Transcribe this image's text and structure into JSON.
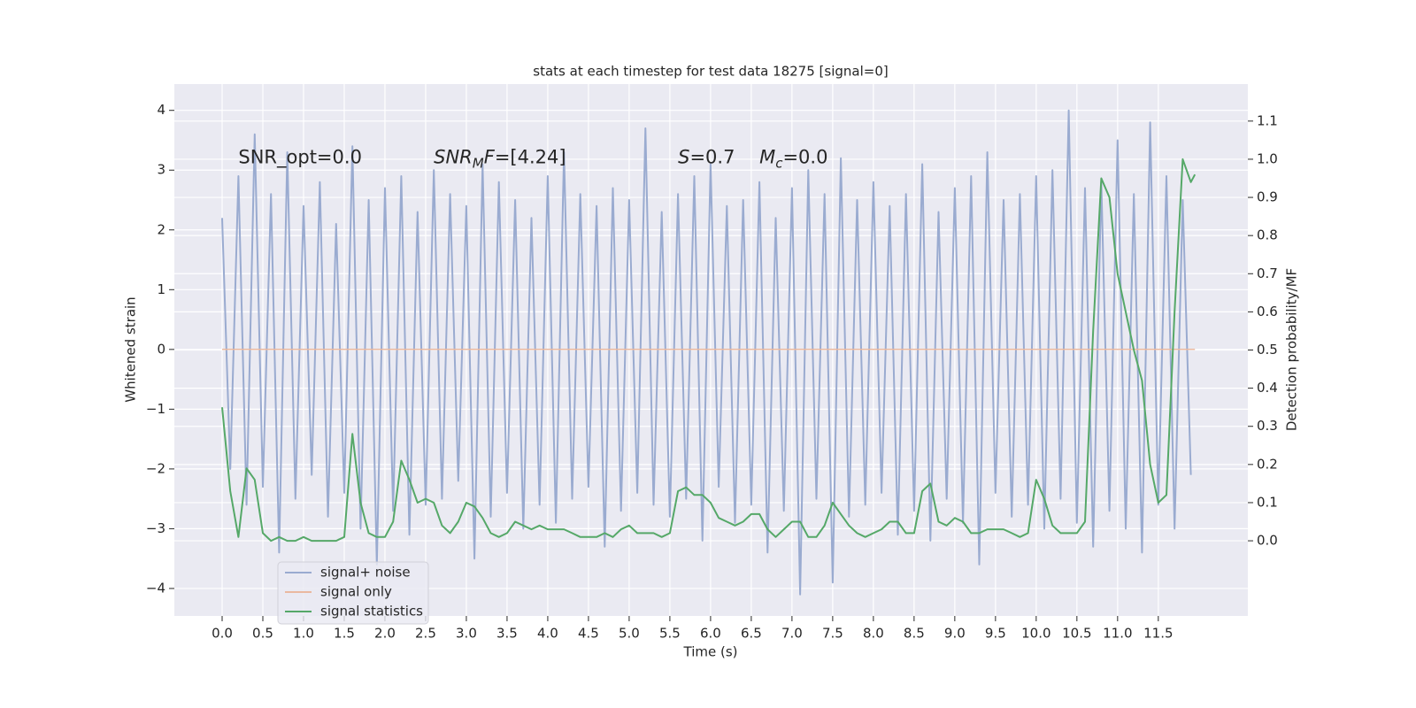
{
  "chart_data": {
    "type": "line",
    "title": "stats at each timestep for test data 18275 [signal=0]",
    "xlabel": "Time (s)",
    "ylabel": "Whitened strain",
    "y2label": "Detection probability/MF",
    "xlim": [
      -0.587,
      12.6
    ],
    "ylim": [
      -4.46,
      4.44
    ],
    "y2lim": [
      -0.197,
      1.197
    ],
    "xticks": [
      {
        "value": 0,
        "label": "0.0"
      },
      {
        "value": 0.5,
        "label": "0.5"
      },
      {
        "value": 1,
        "label": "1.0"
      },
      {
        "value": 1.5,
        "label": "1.5"
      },
      {
        "value": 2,
        "label": "2.0"
      },
      {
        "value": 2.5,
        "label": "2.5"
      },
      {
        "value": 3,
        "label": "3.0"
      },
      {
        "value": 3.5,
        "label": "3.5"
      },
      {
        "value": 4,
        "label": "4.0"
      },
      {
        "value": 4.5,
        "label": "4.5"
      },
      {
        "value": 5,
        "label": "5.0"
      },
      {
        "value": 5.5,
        "label": "5.5"
      },
      {
        "value": 6,
        "label": "6.0"
      },
      {
        "value": 6.5,
        "label": "6.5"
      },
      {
        "value": 7,
        "label": "7.0"
      },
      {
        "value": 7.5,
        "label": "7.5"
      },
      {
        "value": 8,
        "label": "8.0"
      },
      {
        "value": 8.5,
        "label": "8.5"
      },
      {
        "value": 9,
        "label": "9.0"
      },
      {
        "value": 9.5,
        "label": "9.5"
      },
      {
        "value": 10,
        "label": "10.0"
      },
      {
        "value": 10.5,
        "label": "10.5"
      },
      {
        "value": 11,
        "label": "11.0"
      },
      {
        "value": 11.5,
        "label": "11.5"
      }
    ],
    "yticks": [
      {
        "value": -4,
        "label": "−4"
      },
      {
        "value": -3,
        "label": "−3"
      },
      {
        "value": -2,
        "label": "−2"
      },
      {
        "value": -1,
        "label": "−1"
      },
      0,
      1,
      2,
      3,
      4
    ],
    "y2ticks": [
      {
        "value": 0,
        "label": "0.0"
      },
      {
        "value": 0.1,
        "label": "0.1"
      },
      {
        "value": 0.2,
        "label": "0.2"
      },
      {
        "value": 0.3,
        "label": "0.3"
      },
      {
        "value": 0.4,
        "label": "0.4"
      },
      {
        "value": 0.5,
        "label": "0.5"
      },
      {
        "value": 0.6,
        "label": "0.6"
      },
      {
        "value": 0.7,
        "label": "0.7"
      },
      {
        "value": 0.8,
        "label": "0.8"
      },
      {
        "value": 0.9,
        "label": "0.9"
      },
      {
        "value": 1,
        "label": "1.0"
      },
      {
        "value": 1.1,
        "label": "1.1"
      }
    ],
    "grid": true,
    "legend": "lower left",
    "annotations": [
      {
        "x": 0.2,
        "y": 3.2,
        "parts": [
          {
            "text": "SNR_opt=0.0"
          }
        ]
      },
      {
        "x": 2.6,
        "y": 3.2,
        "parts": [
          {
            "text": "SNR",
            "italic": true
          },
          {
            "text": "M",
            "italic": true,
            "sub": true
          },
          {
            "text": "F",
            "italic": true
          },
          {
            "text": "=[4.24]"
          }
        ]
      },
      {
        "x": 5.6,
        "y": 3.2,
        "parts": [
          {
            "text": "S",
            "italic": true
          },
          {
            "text": "=0.7"
          }
        ]
      },
      {
        "x": 6.6,
        "y": 3.2,
        "parts": [
          {
            "text": "M",
            "italic": true
          },
          {
            "text": "c",
            "italic": true,
            "sub": true
          },
          {
            "text": "=0.0"
          }
        ]
      }
    ],
    "series": [
      {
        "name": "signal+ noise",
        "color": "#9aabd0",
        "width": 2,
        "x": [
          0,
          0.1,
          0.2,
          0.3,
          0.4,
          0.5,
          0.6,
          0.7,
          0.8,
          0.9,
          1,
          1.1,
          1.2,
          1.3,
          1.4,
          1.5,
          1.6,
          1.7,
          1.8,
          1.9,
          2,
          2.1,
          2.2,
          2.3,
          2.4,
          2.5,
          2.6,
          2.7,
          2.8,
          2.9,
          3,
          3.1,
          3.2,
          3.3,
          3.4,
          3.5,
          3.6,
          3.7,
          3.8,
          3.9,
          4,
          4.1,
          4.2,
          4.3,
          4.4,
          4.5,
          4.6,
          4.7,
          4.8,
          4.9,
          5,
          5.1,
          5.2,
          5.3,
          5.4,
          5.5,
          5.6,
          5.7,
          5.8,
          5.9,
          6,
          6.1,
          6.2,
          6.3,
          6.4,
          6.5,
          6.6,
          6.7,
          6.8,
          6.9,
          7,
          7.1,
          7.2,
          7.3,
          7.4,
          7.5,
          7.6,
          7.7,
          7.8,
          7.9,
          8,
          8.1,
          8.2,
          8.3,
          8.4,
          8.5,
          8.6,
          8.7,
          8.8,
          8.9,
          9,
          9.1,
          9.2,
          9.3,
          9.4,
          9.5,
          9.6,
          9.7,
          9.8,
          9.9,
          10,
          10.1,
          10.2,
          10.3,
          10.4,
          10.5,
          10.6,
          10.7,
          10.8,
          10.9,
          11,
          11.1,
          11.2,
          11.3,
          11.4,
          11.5,
          11.6,
          11.7,
          11.8,
          11.9
        ],
        "values": [
          2.2,
          -2.0,
          2.9,
          -2.6,
          3.6,
          -2.3,
          2.6,
          -3.4,
          3.3,
          -2.5,
          2.4,
          -2.1,
          2.8,
          -2.8,
          2.1,
          -2.4,
          3.4,
          -3.0,
          2.5,
          -3.6,
          2.7,
          -2.7,
          2.9,
          -3.1,
          2.3,
          -2.6,
          3.0,
          -2.5,
          2.6,
          -2.2,
          2.4,
          -3.5,
          3.1,
          -2.8,
          2.8,
          -2.4,
          2.5,
          -3.0,
          2.2,
          -2.6,
          2.9,
          -2.9,
          3.3,
          -2.5,
          2.6,
          -2.3,
          2.4,
          -3.3,
          2.7,
          -2.7,
          2.5,
          -2.4,
          3.7,
          -2.6,
          2.3,
          -2.8,
          2.6,
          -2.5,
          2.9,
          -3.2,
          3.1,
          -2.3,
          2.4,
          -2.9,
          2.5,
          -2.6,
          2.8,
          -3.4,
          2.2,
          -2.7,
          2.7,
          -4.1,
          3.0,
          -2.5,
          2.6,
          -3.9,
          3.2,
          -2.8,
          2.5,
          -2.6,
          2.8,
          -2.4,
          2.4,
          -3.1,
          2.6,
          -2.7,
          3.1,
          -3.2,
          2.3,
          -2.5,
          2.7,
          -2.9,
          2.9,
          -3.6,
          3.3,
          -2.4,
          2.5,
          -2.8,
          2.6,
          -2.6,
          2.9,
          -3.0,
          3.0,
          -2.5,
          4.0,
          -2.9,
          2.7,
          -3.3,
          2.8,
          -2.7,
          3.5,
          -3.0,
          2.6,
          -3.4,
          3.8,
          -2.6,
          2.9,
          -3.0,
          2.5,
          -2.1
        ]
      },
      {
        "name": "signal only",
        "color": "#eab9a0",
        "width": 1.5,
        "x": [
          0,
          11.95
        ],
        "values": [
          0,
          0
        ]
      },
      {
        "name": "signal statistics",
        "color": "#55a868",
        "width": 2,
        "axis": "y2",
        "x": [
          0,
          0.1,
          0.2,
          0.3,
          0.4,
          0.5,
          0.6,
          0.7,
          0.8,
          0.9,
          1,
          1.1,
          1.2,
          1.3,
          1.4,
          1.5,
          1.6,
          1.7,
          1.8,
          1.9,
          2,
          2.1,
          2.2,
          2.3,
          2.4,
          2.5,
          2.6,
          2.7,
          2.8,
          2.9,
          3,
          3.1,
          3.2,
          3.3,
          3.4,
          3.5,
          3.6,
          3.7,
          3.8,
          3.9,
          4,
          4.1,
          4.2,
          4.3,
          4.4,
          4.5,
          4.6,
          4.7,
          4.8,
          4.9,
          5,
          5.1,
          5.2,
          5.3,
          5.4,
          5.5,
          5.6,
          5.7,
          5.8,
          5.9,
          6,
          6.1,
          6.2,
          6.3,
          6.4,
          6.5,
          6.6,
          6.7,
          6.8,
          6.9,
          7,
          7.1,
          7.2,
          7.3,
          7.4,
          7.5,
          7.6,
          7.7,
          7.8,
          7.9,
          8,
          8.1,
          8.2,
          8.3,
          8.4,
          8.5,
          8.6,
          8.7,
          8.8,
          8.9,
          9,
          9.1,
          9.2,
          9.3,
          9.4,
          9.5,
          9.6,
          9.7,
          9.8,
          9.9,
          10,
          10.1,
          10.2,
          10.3,
          10.4,
          10.5,
          10.6,
          10.7,
          10.8,
          10.9,
          11,
          11.1,
          11.2,
          11.3,
          11.4,
          11.5,
          11.6,
          11.7,
          11.8,
          11.9,
          11.95
        ],
        "values": [
          0.35,
          0.13,
          0.01,
          0.19,
          0.16,
          0.02,
          0.0,
          0.01,
          0.0,
          0.0,
          0.01,
          0.0,
          0.0,
          0.0,
          0.0,
          0.01,
          0.28,
          0.1,
          0.02,
          0.01,
          0.01,
          0.05,
          0.21,
          0.16,
          0.1,
          0.11,
          0.1,
          0.04,
          0.02,
          0.05,
          0.1,
          0.09,
          0.06,
          0.02,
          0.01,
          0.02,
          0.05,
          0.04,
          0.03,
          0.04,
          0.03,
          0.03,
          0.03,
          0.02,
          0.01,
          0.01,
          0.01,
          0.02,
          0.01,
          0.03,
          0.04,
          0.02,
          0.02,
          0.02,
          0.01,
          0.02,
          0.13,
          0.14,
          0.12,
          0.12,
          0.1,
          0.06,
          0.05,
          0.04,
          0.05,
          0.07,
          0.07,
          0.03,
          0.01,
          0.03,
          0.05,
          0.05,
          0.01,
          0.01,
          0.04,
          0.1,
          0.07,
          0.04,
          0.02,
          0.01,
          0.02,
          0.03,
          0.05,
          0.05,
          0.02,
          0.02,
          0.13,
          0.15,
          0.05,
          0.04,
          0.06,
          0.05,
          0.02,
          0.02,
          0.03,
          0.03,
          0.03,
          0.02,
          0.01,
          0.02,
          0.16,
          0.11,
          0.04,
          0.02,
          0.02,
          0.02,
          0.05,
          0.55,
          0.95,
          0.9,
          0.7,
          0.6,
          0.5,
          0.42,
          0.2,
          0.1,
          0.12,
          0.6,
          1.0,
          0.94,
          0.96
        ]
      }
    ]
  }
}
